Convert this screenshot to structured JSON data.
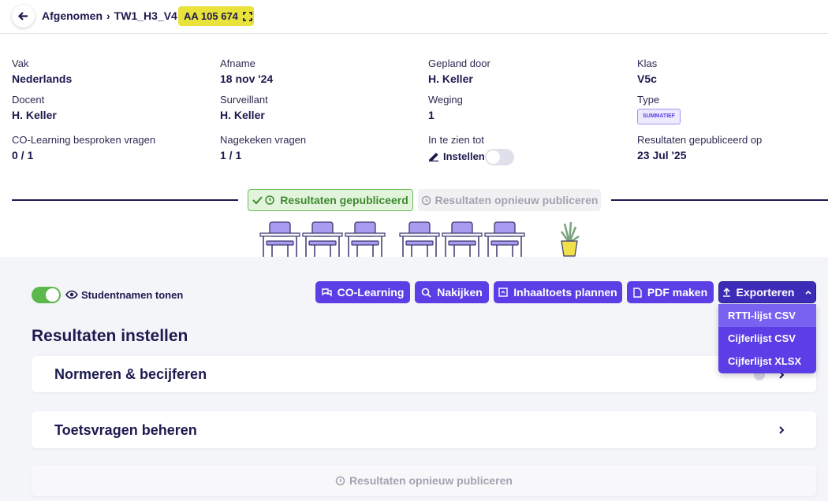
{
  "header": {
    "breadcrumb": [
      "Afgenomen",
      "TW1_H3_V4"
    ],
    "code": "AA 105 674"
  },
  "info": {
    "fields": [
      {
        "label": "Vak",
        "value": "Nederlands"
      },
      {
        "label": "Afname",
        "value": "18 nov '24"
      },
      {
        "label": "Gepland door",
        "value": "H. Keller"
      },
      {
        "label": "Klas",
        "value": "V5c"
      },
      {
        "label": "Docent",
        "value": "H. Keller"
      },
      {
        "label": "Surveillant",
        "value": "H. Keller"
      },
      {
        "label": "Weging",
        "value": "1"
      },
      {
        "label": "Type",
        "value": "SUMMATIEF"
      },
      {
        "label": "CO-Learning besproken vragen",
        "value": "0 / 1"
      },
      {
        "label": "Nagekeken vragen",
        "value": "1 / 1"
      },
      {
        "label": "In te zien tot",
        "value": "Instellen"
      },
      {
        "label": "Resultaten gepubliceerd op",
        "value": "23 Jul '25"
      }
    ]
  },
  "status": {
    "published": "Resultaten gepubliceerd",
    "republish": "Resultaten opnieuw publiceren"
  },
  "toolbar": {
    "toggle_label": "Studentnamen tonen",
    "buttons": [
      "CO-Learning",
      "Nakijken",
      "Inhaaltoets plannen",
      "PDF maken"
    ],
    "export": {
      "label": "Exporteren",
      "options": [
        "RTTI-lijst CSV",
        "Cijferlijst CSV",
        "Cijferlijst XLSX"
      ]
    }
  },
  "section": {
    "title": "Resultaten instellen",
    "cards": [
      "Normeren & becijferen",
      "Toetsvragen beheren"
    ],
    "footer": "Resultaten opnieuw publiceren"
  }
}
